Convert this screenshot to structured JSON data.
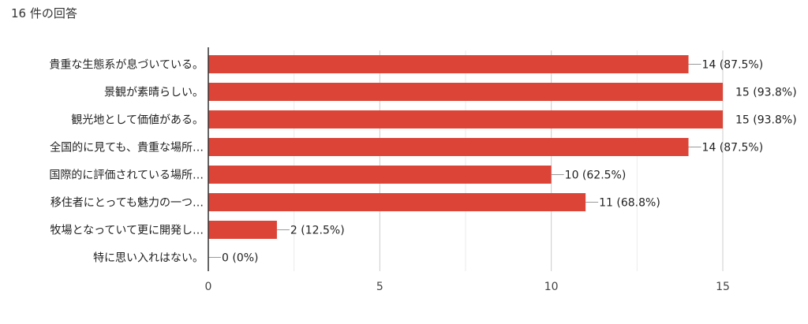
{
  "header": {
    "response_count": "16 件の回答"
  },
  "chart_data": {
    "type": "bar",
    "orientation": "horizontal",
    "categories": [
      "貴重な生態系が息づいている。",
      "景観が素晴らしい。",
      "観光地として価値がある。",
      "全国的に見ても、貴重な場所…",
      "国際的に評価されている場所…",
      "移住者にとっても魅力の一つ…",
      "牧場となっていて更に開発し…",
      "特に思い入れはない。"
    ],
    "values": [
      14,
      15,
      15,
      14,
      10,
      11,
      2,
      0
    ],
    "data_labels": [
      "14 (87.5%)",
      "15 (93.8%)",
      "15 (93.8%)",
      "14 (87.5%)",
      "10 (62.5%)",
      "11 (68.8%)",
      "2 (12.5%)",
      "0 (0%)"
    ],
    "x_ticks": [
      0,
      5,
      10,
      15
    ],
    "xlim": [
      0,
      15
    ],
    "bar_color": "#db4437",
    "grid": true,
    "title": "",
    "xlabel": "",
    "ylabel": ""
  }
}
